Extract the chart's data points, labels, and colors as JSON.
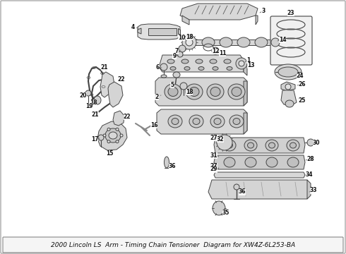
{
  "title": "2000 Lincoln LS  Arm - Timing Chain Tensioner  Diagram for XW4Z-6L253-BA",
  "bg_color": "#ffffff",
  "text_color": "#111111",
  "title_fontsize": 6.5,
  "line_color": "#444444",
  "fill_color": "#e8e8e8",
  "fill_dark": "#cccccc"
}
